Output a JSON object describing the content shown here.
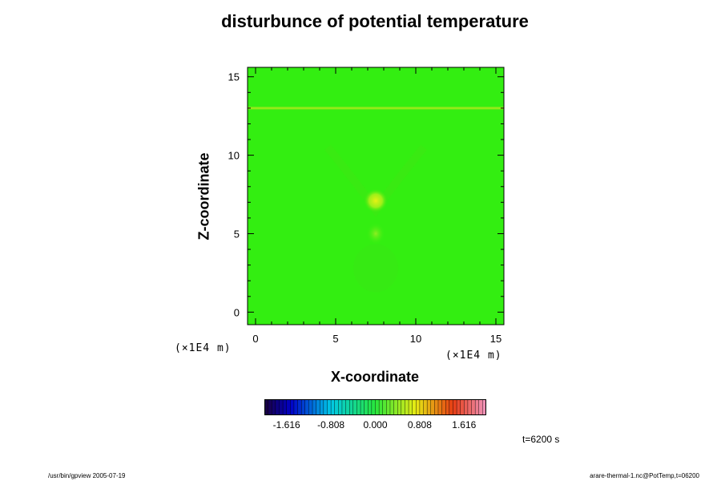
{
  "chart_data": {
    "type": "heatmap",
    "title": "disturbunce of potential temperature",
    "xlabel": "X-coordinate",
    "ylabel": "Z-coordinate",
    "x_scale_note": "(×1E4 m)",
    "y_scale_note": "(×1E4 m)",
    "x_ticks": [
      "0",
      "5",
      "10",
      "15"
    ],
    "y_ticks": [
      "0",
      "5",
      "10",
      "15"
    ],
    "xlim": [
      -0.5,
      15.5
    ],
    "ylim": [
      -0.8,
      15.6
    ],
    "grid": false,
    "colorbar": {
      "tick_labels": [
        "-1.616",
        "-0.808",
        "0.000",
        "0.808",
        "1.616"
      ],
      "range": [
        -2.02,
        2.02
      ]
    },
    "field": {
      "background_value": 0.0,
      "features": [
        {
          "name": "warm anomaly",
          "x": 7.5,
          "z": 7.1,
          "value": 0.85
        },
        {
          "name": "secondary anomaly",
          "x": 7.5,
          "z": 5.0,
          "value": 0.3
        },
        {
          "name": "layer at z=13",
          "x_range": [
            -0.5,
            15.5
          ],
          "z": 13.0,
          "value": 0.4
        }
      ]
    }
  },
  "annotations": {
    "time": "t=6200 s",
    "footer_left": "/usr/bin/gpview 2005-07-19",
    "footer_right": "arare-thermal-1.nc@PotTemp,t=06200"
  }
}
